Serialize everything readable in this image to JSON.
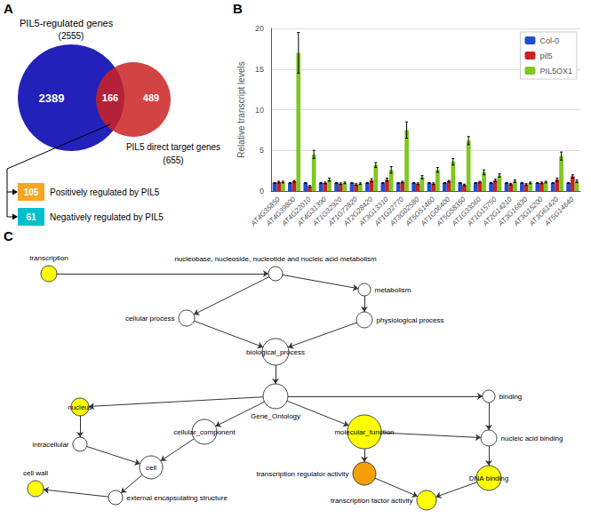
{
  "chart_data": [
    {
      "type": "venn",
      "title": "A",
      "series": [
        {
          "name": "PIL5-regulated genes",
          "count_label": "(2555)",
          "only": 2389,
          "color": "#2222bb"
        },
        {
          "name": "PIL5 direct target genes",
          "count_label": "(655)",
          "only": 489,
          "color": "#cc2222"
        }
      ],
      "overlap": 166,
      "overlap_split": {
        "categories": [
          "Positively regulated by PIL5",
          "Negatively regulated by PIL5"
        ],
        "values": [
          105,
          61
        ],
        "colors": [
          "#f5a623",
          "#00c0d0"
        ]
      }
    },
    {
      "type": "bar",
      "title": "B",
      "ylabel": "Relative transcript levels",
      "categories": [
        "AT4G35850",
        "AT4G39800",
        "AT4G22010",
        "AT4G31390",
        "AT1G32920",
        "AT1G72820",
        "AT2G28420",
        "AT3G13310",
        "AT1G22770",
        "AT3G02580",
        "AT5G51460",
        "AT1G06400",
        "AT5G58350",
        "AT1G33060",
        "AT1G15750",
        "AT2G14210",
        "AT3G16830",
        "AT3G15200",
        "AT3G61420",
        "AT5G14640"
      ],
      "series": [
        {
          "name": "Col-0",
          "color": "#1f4fcf",
          "values": [
            1.0,
            1.0,
            1.0,
            1.0,
            1.0,
            1.0,
            1.0,
            1.0,
            1.0,
            1.0,
            1.0,
            1.0,
            1.0,
            1.0,
            1.0,
            1.0,
            1.0,
            1.0,
            1.0,
            1.0
          ],
          "errors": [
            0.05,
            0.05,
            0.05,
            0.05,
            0.05,
            0.05,
            0.05,
            0.05,
            0.05,
            0.05,
            0.05,
            0.05,
            0.05,
            0.05,
            0.05,
            0.05,
            0.05,
            0.05,
            0.05,
            0.05
          ]
        },
        {
          "name": "pil5",
          "color": "#cc2222",
          "values": [
            1.1,
            1.2,
            0.6,
            1.0,
            0.9,
            0.8,
            1.3,
            1.4,
            1.1,
            0.9,
            0.9,
            1.2,
            0.75,
            1.1,
            1.3,
            0.85,
            0.8,
            1.0,
            1.4,
            1.8
          ],
          "errors": [
            0.1,
            0.1,
            0.1,
            0.1,
            0.1,
            0.1,
            0.2,
            0.2,
            0.1,
            0.1,
            0.1,
            0.1,
            0.1,
            0.1,
            0.15,
            0.1,
            0.1,
            0.1,
            0.2,
            0.2
          ]
        },
        {
          "name": "PIL5OX1",
          "color": "#7ec820",
          "values": [
            1.1,
            17.0,
            4.5,
            1.4,
            1.0,
            0.9,
            3.2,
            2.6,
            7.5,
            1.7,
            2.6,
            3.6,
            6.2,
            2.3,
            1.9,
            1.2,
            1.0,
            1.1,
            4.3,
            1.2
          ],
          "errors": [
            0.1,
            2.5,
            0.5,
            0.2,
            0.1,
            0.1,
            0.3,
            0.4,
            1.0,
            0.2,
            0.3,
            0.4,
            0.5,
            0.3,
            0.2,
            0.15,
            0.1,
            0.1,
            0.5,
            0.15
          ]
        }
      ],
      "ylim": [
        0,
        20
      ],
      "yticks": [
        0,
        5,
        10,
        15,
        20
      ],
      "grid": true,
      "legend": "upper right"
    },
    {
      "type": "graph",
      "title": "C",
      "nodes": [
        {
          "name": "transcription",
          "color": "#ffff00"
        },
        {
          "name": "nucleobase, nucleoside, nucleotide and nucleic acid metabolism",
          "color": "#ffffff"
        },
        {
          "name": "metabolism",
          "color": "#ffffff"
        },
        {
          "name": "cellular process",
          "color": "#ffffff"
        },
        {
          "name": "physiological process",
          "color": "#ffffff"
        },
        {
          "name": "biological_process",
          "color": "#ffffff"
        },
        {
          "name": "Gene_Ontology",
          "color": "#ffffff"
        },
        {
          "name": "nucleus",
          "color": "#ffff00"
        },
        {
          "name": "binding",
          "color": "#ffffff"
        },
        {
          "name": "intracellular",
          "color": "#ffffff"
        },
        {
          "name": "cellular_component",
          "color": "#ffffff"
        },
        {
          "name": "molecular_function",
          "color": "#ffff00"
        },
        {
          "name": "nucleic acid binding",
          "color": "#ffffff"
        },
        {
          "name": "cell",
          "color": "#ffffff"
        },
        {
          "name": "transcription regulator activity",
          "color": "#f5a000"
        },
        {
          "name": "DNA binding",
          "color": "#ffff00"
        },
        {
          "name": "external encapsulating structure",
          "color": "#ffffff"
        },
        {
          "name": "cell wall",
          "color": "#ffff00"
        },
        {
          "name": "transcription factor activity",
          "color": "#ffff00"
        }
      ],
      "edges": [
        [
          "transcription",
          "nucleobase, nucleoside, nucleotide and nucleic acid metabolism"
        ],
        [
          "nucleobase, nucleoside, nucleotide and nucleic acid metabolism",
          "cellular process"
        ],
        [
          "nucleobase, nucleoside, nucleotide and nucleic acid metabolism",
          "metabolism"
        ],
        [
          "metabolism",
          "physiological process"
        ],
        [
          "cellular process",
          "biological_process"
        ],
        [
          "physiological process",
          "biological_process"
        ],
        [
          "biological_process",
          "Gene_Ontology"
        ],
        [
          "Gene_Ontology",
          "nucleus"
        ],
        [
          "Gene_Ontology",
          "cellular_component"
        ],
        [
          "Gene_Ontology",
          "molecular_function"
        ],
        [
          "Gene_Ontology",
          "binding"
        ],
        [
          "nucleus",
          "intracellular"
        ],
        [
          "intracellular",
          "cell"
        ],
        [
          "cellular_component",
          "cell"
        ],
        [
          "molecular_function",
          "transcription regulator activity"
        ],
        [
          "molecular_function",
          "nucleic acid binding"
        ],
        [
          "binding",
          "nucleic acid binding"
        ],
        [
          "nucleic acid binding",
          "DNA binding"
        ],
        [
          "cell",
          "external encapsulating structure"
        ],
        [
          "external encapsulating structure",
          "cell wall"
        ],
        [
          "transcription regulator activity",
          "transcription factor activity"
        ],
        [
          "DNA binding",
          "transcription factor activity"
        ]
      ]
    }
  ]
}
